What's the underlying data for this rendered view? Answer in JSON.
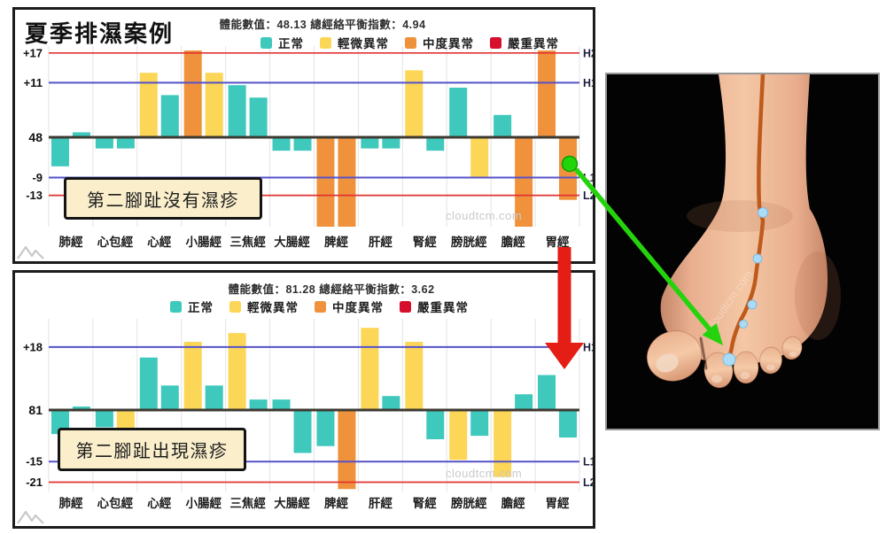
{
  "colors": {
    "normal": "#3fc8bc",
    "mild": "#fcd657",
    "moderate": "#f0923c",
    "severe": "#d60f2c",
    "line_blue": "#5552c8",
    "line_red": "#e23333",
    "baseline": "#3d3a32",
    "grid": "#e3e3e3",
    "green_marker": "#22d40a",
    "green_arrow": "#25d30c",
    "red_arrow": "#e41d15",
    "meridian_line": "#bf5a1d",
    "acupoint": "#aadcf7",
    "annotation_bg": "#faeecb"
  },
  "legend": {
    "items": [
      {
        "key": "normal",
        "label": "正常"
      },
      {
        "key": "mild",
        "label": "輕微異常"
      },
      {
        "key": "moderate",
        "label": "中度異常"
      },
      {
        "key": "severe",
        "label": "嚴重異常"
      }
    ]
  },
  "chart_data": [
    {
      "type": "bar",
      "title": "夏季排濕案例",
      "header": "體能數值：48.13 總經絡平衡指數：4.94",
      "physical_value": 48.13,
      "balance_index": 4.94,
      "annotation": "第二腳趾沒有濕疹",
      "watermark": "cloudtcm.com",
      "baseline": {
        "label": "48"
      },
      "ylim": [
        -21,
        18.5
      ],
      "threshold_lines": [
        {
          "label": "H2",
          "value": 17,
          "tick": "+17",
          "color": "red"
        },
        {
          "label": "H1",
          "value": 11,
          "tick": "+11",
          "color": "blue"
        },
        {
          "label": "L1",
          "value": -9,
          "tick": "-9",
          "color": "blue"
        },
        {
          "label": "L2",
          "value": -13,
          "tick": "-13",
          "color": "red"
        }
      ],
      "categories": [
        "肺經",
        "心包經",
        "心經",
        "小腸經",
        "三焦經",
        "大腸經",
        "脾經",
        "肝經",
        "腎經",
        "膀胱經",
        "膽經",
        "胃經"
      ],
      "bars": [
        [
          {
            "value": -6.5,
            "status": "normal"
          },
          {
            "value": 1,
            "status": "normal"
          }
        ],
        [
          {
            "value": -2.5,
            "status": "normal"
          },
          {
            "value": -2.5,
            "status": "normal"
          }
        ],
        [
          {
            "value": 13,
            "status": "mild"
          },
          {
            "value": 8.5,
            "status": "normal"
          }
        ],
        [
          {
            "value": 17.5,
            "status": "moderate"
          },
          {
            "value": 13,
            "status": "mild"
          }
        ],
        [
          {
            "value": 10.5,
            "status": "normal"
          },
          {
            "value": 8,
            "status": "normal"
          }
        ],
        [
          {
            "value": -3,
            "status": "normal"
          },
          {
            "value": -3,
            "status": "normal"
          }
        ],
        [
          {
            "value": -21,
            "status": "moderate"
          },
          {
            "value": -21,
            "status": "moderate"
          }
        ],
        [
          {
            "value": -2.5,
            "status": "normal"
          },
          {
            "value": -2.5,
            "status": "normal"
          }
        ],
        [
          {
            "value": 13.5,
            "status": "mild"
          },
          {
            "value": -3,
            "status": "normal"
          }
        ],
        [
          {
            "value": 10,
            "status": "normal"
          },
          {
            "value": -9,
            "status": "mild"
          }
        ],
        [
          {
            "value": 4.5,
            "status": "normal"
          },
          {
            "value": -21,
            "status": "moderate"
          }
        ],
        [
          {
            "value": 17.5,
            "status": "moderate"
          },
          {
            "value": -14,
            "status": "moderate"
          }
        ]
      ],
      "marker": {
        "shape": "green-dot",
        "category": "胃經",
        "bar": "right",
        "value": -5.5
      }
    },
    {
      "type": "bar",
      "title": "",
      "header": "體能數值：81.28 總經絡平衡指數：3.62",
      "physical_value": 81.28,
      "balance_index": 3.62,
      "annotation": "第二腳趾出現濕疹",
      "watermark": "cloudtcm.com",
      "baseline": {
        "label": "81"
      },
      "ylim": [
        -24,
        25
      ],
      "threshold_lines": [
        {
          "label": "H1",
          "value": 18,
          "tick": "+18",
          "color": "blue"
        },
        {
          "label": "L1",
          "value": -15,
          "tick": "-15",
          "color": "blue"
        },
        {
          "label": "L2",
          "value": -21,
          "tick": "-21",
          "color": "red"
        }
      ],
      "categories": [
        "肺經",
        "心包經",
        "心經",
        "小腸經",
        "三焦經",
        "大腸經",
        "脾經",
        "肝經",
        "腎經",
        "膀胱經",
        "膽經",
        "胃經"
      ],
      "bars": [
        [
          {
            "value": -7,
            "status": "normal"
          },
          {
            "value": 1,
            "status": "normal"
          }
        ],
        [
          {
            "value": -5,
            "status": "normal"
          },
          {
            "value": -10,
            "status": "mild"
          }
        ],
        [
          {
            "value": 15,
            "status": "normal"
          },
          {
            "value": 7,
            "status": "normal"
          }
        ],
        [
          {
            "value": 19.5,
            "status": "mild"
          },
          {
            "value": 7,
            "status": "normal"
          }
        ],
        [
          {
            "value": 22,
            "status": "mild"
          },
          {
            "value": 3,
            "status": "normal"
          }
        ],
        [
          {
            "value": 3,
            "status": "normal"
          },
          {
            "value": -12.5,
            "status": "normal"
          }
        ],
        [
          {
            "value": -10.5,
            "status": "normal"
          },
          {
            "value": -23,
            "status": "moderate"
          }
        ],
        [
          {
            "value": 23.5,
            "status": "mild"
          },
          {
            "value": 4,
            "status": "normal"
          }
        ],
        [
          {
            "value": 19.5,
            "status": "mild"
          },
          {
            "value": -8.5,
            "status": "normal"
          }
        ],
        [
          {
            "value": -14.5,
            "status": "mild"
          },
          {
            "value": -7.5,
            "status": "normal"
          }
        ],
        [
          {
            "value": -19.5,
            "status": "mild"
          },
          {
            "value": 4.5,
            "status": "normal"
          }
        ],
        [
          {
            "value": 10,
            "status": "normal"
          },
          {
            "value": -8,
            "status": "normal"
          }
        ]
      ]
    }
  ],
  "foot_panel": {
    "watermark": "cloudtcm.com"
  },
  "overlay": {
    "green_arrow": {
      "from": "top-chart 胃經 marker",
      "to": "second toe"
    },
    "red_arrow": {
      "from": "top-chart 胃經",
      "to": "bottom-chart 胃經"
    }
  }
}
